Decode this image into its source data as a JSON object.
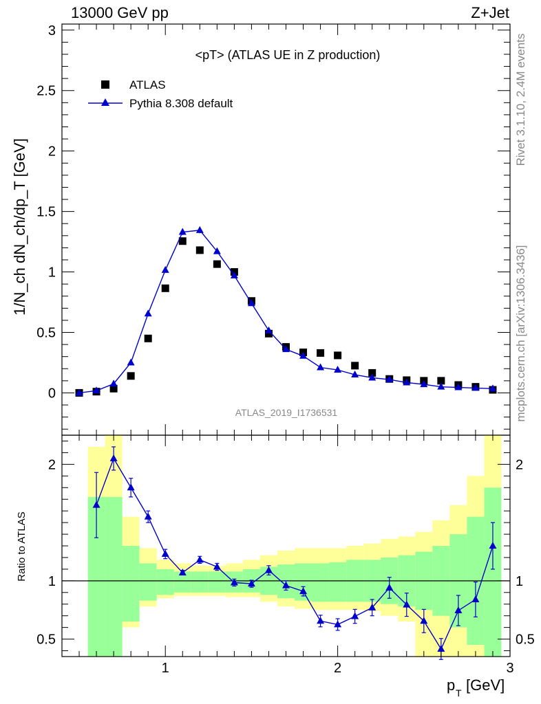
{
  "header": {
    "left": "13000 GeV pp",
    "right": "Z+Jet"
  },
  "side_labels": {
    "rivet": "Rivet 3.1.10,  2.4M events",
    "mcplots": "mcplots.cern.ch [arXiv:1306.3436]"
  },
  "chart_data": [
    {
      "type": "scatter",
      "title": "<pT> (ATLAS UE in Z production)",
      "watermark": "ATLAS_2019_I1736531",
      "ylabel": "1/N_ch dN_ch/dp_T [GeV]",
      "xlim": [
        0.4,
        3.0
      ],
      "ylim": [
        -0.35,
        3.05
      ],
      "yticks": [
        "0",
        "0.5",
        "1",
        "1.5",
        "2",
        "2.5",
        "3"
      ],
      "legend_position": "top-left",
      "series": [
        {
          "name": "ATLAS",
          "marker": "square",
          "color": "#000000",
          "x": [
            0.5,
            0.6,
            0.7,
            0.8,
            0.9,
            1.0,
            1.1,
            1.2,
            1.3,
            1.4,
            1.5,
            1.6,
            1.7,
            1.8,
            1.9,
            2.0,
            2.1,
            2.2,
            2.3,
            2.4,
            2.5,
            2.6,
            2.7,
            2.8,
            2.9
          ],
          "y": [
            0.0,
            0.01,
            0.035,
            0.14,
            0.45,
            0.865,
            1.255,
            1.18,
            1.065,
            1.0,
            0.76,
            0.49,
            0.38,
            0.335,
            0.33,
            0.31,
            0.225,
            0.165,
            0.115,
            0.105,
            0.1,
            0.1,
            0.065,
            0.05,
            0.025
          ]
        },
        {
          "name": "Pythia 8.308 default",
          "marker": "triangle",
          "color": "#0000cc",
          "x": [
            0.5,
            0.6,
            0.7,
            0.8,
            0.9,
            1.0,
            1.1,
            1.2,
            1.3,
            1.4,
            1.5,
            1.6,
            1.7,
            1.8,
            1.9,
            2.0,
            2.1,
            2.2,
            2.3,
            2.4,
            2.5,
            2.6,
            2.7,
            2.8,
            2.9
          ],
          "y": [
            0.0,
            0.018,
            0.075,
            0.25,
            0.655,
            1.015,
            1.33,
            1.345,
            1.17,
            0.97,
            0.74,
            0.515,
            0.36,
            0.305,
            0.21,
            0.19,
            0.15,
            0.125,
            0.11,
            0.085,
            0.07,
            0.05,
            0.045,
            0.04,
            0.035
          ],
          "yerr": [
            0.003,
            0.004,
            0.006,
            0.01,
            0.015,
            0.02,
            0.025,
            0.025,
            0.02,
            0.018,
            0.015,
            0.012,
            0.01,
            0.008,
            0.007,
            0.006,
            0.005,
            0.005,
            0.004,
            0.004,
            0.003,
            0.003,
            0.003,
            0.003,
            0.003
          ]
        }
      ]
    },
    {
      "type": "line",
      "ylabel": "Ratio to ATLAS",
      "xlabel": "p_T [GeV]",
      "xlim": [
        0.4,
        3.0
      ],
      "ylim": [
        0.35,
        2.25
      ],
      "xticks": [
        "1",
        "2",
        "3"
      ],
      "yticks": [
        "0.5",
        "1",
        "2"
      ],
      "reference_line": 1.0,
      "bands": {
        "edges": [
          0.55,
          0.65,
          0.75,
          0.85,
          0.95,
          1.05,
          1.15,
          1.25,
          1.35,
          1.45,
          1.55,
          1.65,
          1.75,
          1.85,
          1.95,
          2.05,
          2.15,
          2.25,
          2.35,
          2.45,
          2.55,
          2.65,
          2.75,
          2.85,
          2.95
        ],
        "green_low": [
          0.35,
          0.35,
          0.65,
          0.83,
          0.88,
          0.9,
          0.9,
          0.9,
          0.9,
          0.9,
          0.88,
          0.85,
          0.83,
          0.82,
          0.82,
          0.82,
          0.82,
          0.8,
          0.78,
          0.75,
          0.7,
          0.6,
          0.45,
          0.35
        ],
        "green_high": [
          1.72,
          1.72,
          1.3,
          1.15,
          1.1,
          1.08,
          1.08,
          1.08,
          1.08,
          1.1,
          1.12,
          1.14,
          1.15,
          1.15,
          1.16,
          1.18,
          1.18,
          1.2,
          1.22,
          1.25,
          1.3,
          1.4,
          1.55,
          1.8
        ],
        "yellow_low": [
          0.35,
          0.35,
          0.6,
          0.78,
          0.85,
          0.87,
          0.87,
          0.87,
          0.86,
          0.86,
          0.82,
          0.78,
          0.76,
          0.75,
          0.75,
          0.75,
          0.74,
          0.7,
          0.65,
          0.35,
          0.35,
          0.35,
          0.35,
          0.35
        ],
        "yellow_high": [
          2.15,
          2.25,
          1.55,
          1.28,
          1.18,
          1.15,
          1.13,
          1.13,
          1.15,
          1.18,
          1.22,
          1.26,
          1.28,
          1.28,
          1.28,
          1.3,
          1.32,
          1.36,
          1.38,
          1.42,
          1.52,
          1.65,
          1.9,
          2.25
        ],
        "green_color": "#99ff99",
        "yellow_color": "#ffff99"
      },
      "series": [
        {
          "name": "Pythia 8.308 default",
          "marker": "triangle",
          "color": "#0000cc",
          "x": [
            0.6,
            0.7,
            0.8,
            0.9,
            1.0,
            1.1,
            1.2,
            1.3,
            1.4,
            1.5,
            1.6,
            1.7,
            1.8,
            1.9,
            2.0,
            2.1,
            2.2,
            2.3,
            2.4,
            2.5,
            2.6,
            2.7,
            2.8,
            2.9
          ],
          "y": [
            1.65,
            2.05,
            1.8,
            1.55,
            1.23,
            1.07,
            1.18,
            1.12,
            0.985,
            0.975,
            1.09,
            0.96,
            0.91,
            0.655,
            0.625,
            0.695,
            0.77,
            0.94,
            0.795,
            0.655,
            0.415,
            0.745,
            0.84,
            1.3
          ],
          "err_low": [
            0.28,
            0.1,
            0.08,
            0.05,
            0.04,
            0.02,
            0.03,
            0.03,
            0.03,
            0.03,
            0.04,
            0.04,
            0.04,
            0.05,
            0.05,
            0.06,
            0.07,
            0.09,
            0.1,
            0.1,
            0.09,
            0.13,
            0.15,
            0.2
          ],
          "err_high": [
            0.28,
            0.1,
            0.08,
            0.05,
            0.04,
            0.02,
            0.03,
            0.03,
            0.03,
            0.03,
            0.04,
            0.04,
            0.04,
            0.05,
            0.05,
            0.06,
            0.07,
            0.09,
            0.1,
            0.1,
            0.09,
            0.13,
            0.15,
            0.2
          ]
        }
      ]
    }
  ]
}
